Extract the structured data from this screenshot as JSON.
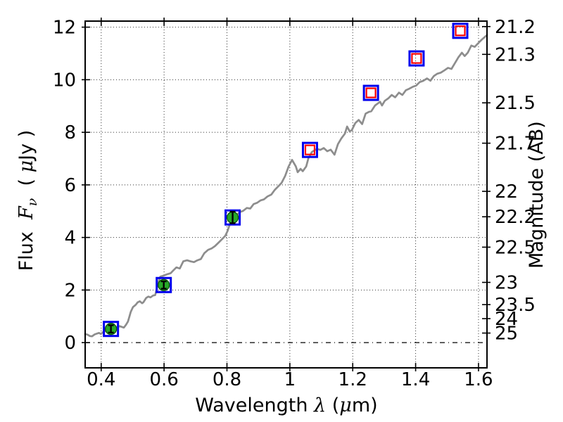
{
  "chart_data": {
    "type": "line",
    "title": "",
    "xlabel": "Wavelength λ (μm)",
    "ylabel": "Flux Fν ( μJy )",
    "y2label": "Magnitude (AB)",
    "xlim": [
      0.349,
      1.627
    ],
    "ylim": [
      -0.96,
      12.23
    ],
    "grid": "dotted",
    "legend": "none",
    "x_ticks": [
      0.4,
      0.6,
      0.8,
      1.0,
      1.2,
      1.4,
      1.6
    ],
    "x_tick_labels": [
      "0.4",
      "0.6",
      "0.8",
      "1",
      "1.2",
      "1.4",
      "1.6"
    ],
    "y_ticks": [
      0,
      2,
      4,
      6,
      8,
      10,
      12
    ],
    "y_tick_labels": [
      "0",
      "2",
      "4",
      "6",
      "8",
      "10",
      "12"
    ],
    "y2_ticks": [
      21.2,
      21.3,
      21.5,
      21.7,
      22,
      22.2,
      22.5,
      23,
      23.5,
      24,
      25
    ],
    "y2_tick_labels": [
      "21.2",
      "21.3",
      "21.5",
      "21.7",
      "22",
      "22.2",
      "22.5",
      "23",
      "23.5",
      "24",
      "25"
    ],
    "ab_zeropoint_ujy": 23.9,
    "zero_flux_line": "dash-dot",
    "colors": {
      "spectrum": "#8d8d8d",
      "square_outer": "#0000ee",
      "square_inner": "#ff0000",
      "circle_fill": "#28a828",
      "circle_edge": "#0a520a",
      "errorbar": "#000000",
      "frame": "#000000",
      "grid": "#000000"
    },
    "series": [
      {
        "name": "model-spectrum",
        "kind": "line",
        "points": [
          [
            0.349,
            0.33
          ],
          [
            0.357,
            0.3
          ],
          [
            0.364,
            0.25
          ],
          [
            0.371,
            0.24
          ],
          [
            0.379,
            0.31
          ],
          [
            0.386,
            0.34
          ],
          [
            0.393,
            0.37
          ],
          [
            0.399,
            0.33
          ],
          [
            0.406,
            0.4
          ],
          [
            0.413,
            0.44
          ],
          [
            0.42,
            0.47
          ],
          [
            0.429,
            0.51
          ],
          [
            0.436,
            0.5
          ],
          [
            0.444,
            0.56
          ],
          [
            0.451,
            0.6
          ],
          [
            0.458,
            0.63
          ],
          [
            0.465,
            0.6
          ],
          [
            0.472,
            0.57
          ],
          [
            0.479,
            0.68
          ],
          [
            0.485,
            0.8
          ],
          [
            0.49,
            1.0
          ],
          [
            0.494,
            1.17
          ],
          [
            0.501,
            1.35
          ],
          [
            0.51,
            1.44
          ],
          [
            0.516,
            1.53
          ],
          [
            0.523,
            1.57
          ],
          [
            0.53,
            1.5
          ],
          [
            0.534,
            1.53
          ],
          [
            0.543,
            1.7
          ],
          [
            0.55,
            1.75
          ],
          [
            0.557,
            1.72
          ],
          [
            0.565,
            1.79
          ],
          [
            0.572,
            1.81
          ],
          [
            0.579,
            2.19
          ],
          [
            0.588,
            2.51
          ],
          [
            0.599,
            2.55
          ],
          [
            0.61,
            2.6
          ],
          [
            0.621,
            2.64
          ],
          [
            0.628,
            2.73
          ],
          [
            0.639,
            2.86
          ],
          [
            0.65,
            2.82
          ],
          [
            0.661,
            3.09
          ],
          [
            0.673,
            3.13
          ],
          [
            0.684,
            3.09
          ],
          [
            0.695,
            3.06
          ],
          [
            0.706,
            3.13
          ],
          [
            0.717,
            3.18
          ],
          [
            0.728,
            3.4
          ],
          [
            0.74,
            3.53
          ],
          [
            0.751,
            3.58
          ],
          [
            0.762,
            3.67
          ],
          [
            0.773,
            3.8
          ],
          [
            0.784,
            3.93
          ],
          [
            0.795,
            4.07
          ],
          [
            0.802,
            4.25
          ],
          [
            0.809,
            4.5
          ],
          [
            0.818,
            4.76
          ],
          [
            0.824,
            4.8
          ],
          [
            0.829,
            4.83
          ],
          [
            0.84,
            4.96
          ],
          [
            0.851,
            5.01
          ],
          [
            0.863,
            5.12
          ],
          [
            0.874,
            5.1
          ],
          [
            0.885,
            5.27
          ],
          [
            0.896,
            5.32
          ],
          [
            0.907,
            5.41
          ],
          [
            0.918,
            5.45
          ],
          [
            0.929,
            5.56
          ],
          [
            0.941,
            5.63
          ],
          [
            0.952,
            5.81
          ],
          [
            0.963,
            5.94
          ],
          [
            0.974,
            6.08
          ],
          [
            0.985,
            6.34
          ],
          [
            0.996,
            6.7
          ],
          [
            1.007,
            6.95
          ],
          [
            1.019,
            6.7
          ],
          [
            1.025,
            6.48
          ],
          [
            1.034,
            6.61
          ],
          [
            1.041,
            6.52
          ],
          [
            1.052,
            6.7
          ],
          [
            1.059,
            7.01
          ],
          [
            1.07,
            7.25
          ],
          [
            1.086,
            7.37
          ],
          [
            1.097,
            7.33
          ],
          [
            1.108,
            7.4
          ],
          [
            1.119,
            7.28
          ],
          [
            1.13,
            7.34
          ],
          [
            1.142,
            7.15
          ],
          [
            1.153,
            7.55
          ],
          [
            1.164,
            7.77
          ],
          [
            1.175,
            7.95
          ],
          [
            1.182,
            8.22
          ],
          [
            1.19,
            8.04
          ],
          [
            1.197,
            8.08
          ],
          [
            1.208,
            8.35
          ],
          [
            1.219,
            8.47
          ],
          [
            1.23,
            8.31
          ],
          [
            1.241,
            8.71
          ],
          [
            1.252,
            8.78
          ],
          [
            1.259,
            8.8
          ],
          [
            1.271,
            9.02
          ],
          [
            1.287,
            9.16
          ],
          [
            1.293,
            9.02
          ],
          [
            1.302,
            9.2
          ],
          [
            1.313,
            9.29
          ],
          [
            1.324,
            9.42
          ],
          [
            1.335,
            9.33
          ],
          [
            1.347,
            9.51
          ],
          [
            1.358,
            9.42
          ],
          [
            1.369,
            9.6
          ],
          [
            1.38,
            9.66
          ],
          [
            1.391,
            9.73
          ],
          [
            1.402,
            9.78
          ],
          [
            1.413,
            9.91
          ],
          [
            1.425,
            9.96
          ],
          [
            1.436,
            10.05
          ],
          [
            1.447,
            9.96
          ],
          [
            1.458,
            10.14
          ],
          [
            1.469,
            10.23
          ],
          [
            1.48,
            10.27
          ],
          [
            1.492,
            10.36
          ],
          [
            1.503,
            10.45
          ],
          [
            1.514,
            10.41
          ],
          [
            1.525,
            10.63
          ],
          [
            1.536,
            10.85
          ],
          [
            1.547,
            11.03
          ],
          [
            1.556,
            10.9
          ],
          [
            1.566,
            11.03
          ],
          [
            1.577,
            11.3
          ],
          [
            1.588,
            11.25
          ],
          [
            1.599,
            11.39
          ],
          [
            1.61,
            11.52
          ],
          [
            1.622,
            11.65
          ],
          [
            1.627,
            11.7
          ]
        ]
      },
      {
        "name": "observed-photometry",
        "kind": "scatter",
        "marker": "green-filled-circle-in-blue-open-square-with-errorbar",
        "points": [
          [
            0.431,
            0.52
          ],
          [
            0.599,
            2.19
          ],
          [
            0.818,
            4.76
          ]
        ],
        "yerr": [
          0.14,
          0.14,
          0.22
        ]
      },
      {
        "name": "predicted-photometry",
        "kind": "scatter",
        "marker": "red-open-square-in-blue-open-square",
        "points": [
          [
            1.064,
            7.33
          ],
          [
            1.258,
            9.5
          ],
          [
            1.403,
            10.81
          ],
          [
            1.542,
            11.86
          ]
        ]
      }
    ]
  },
  "labels": {
    "x": {
      "prefix": "Wavelength ",
      "sym": "λ",
      "open": " (",
      "mu": "μ",
      "close": "m)"
    },
    "y": {
      "prefix": "Flux  ",
      "f": "F",
      "nu": "ν",
      "open": "  ( ",
      "mu": "μ",
      "close": "Jy )"
    },
    "y2": "Magnitude (AB)"
  }
}
